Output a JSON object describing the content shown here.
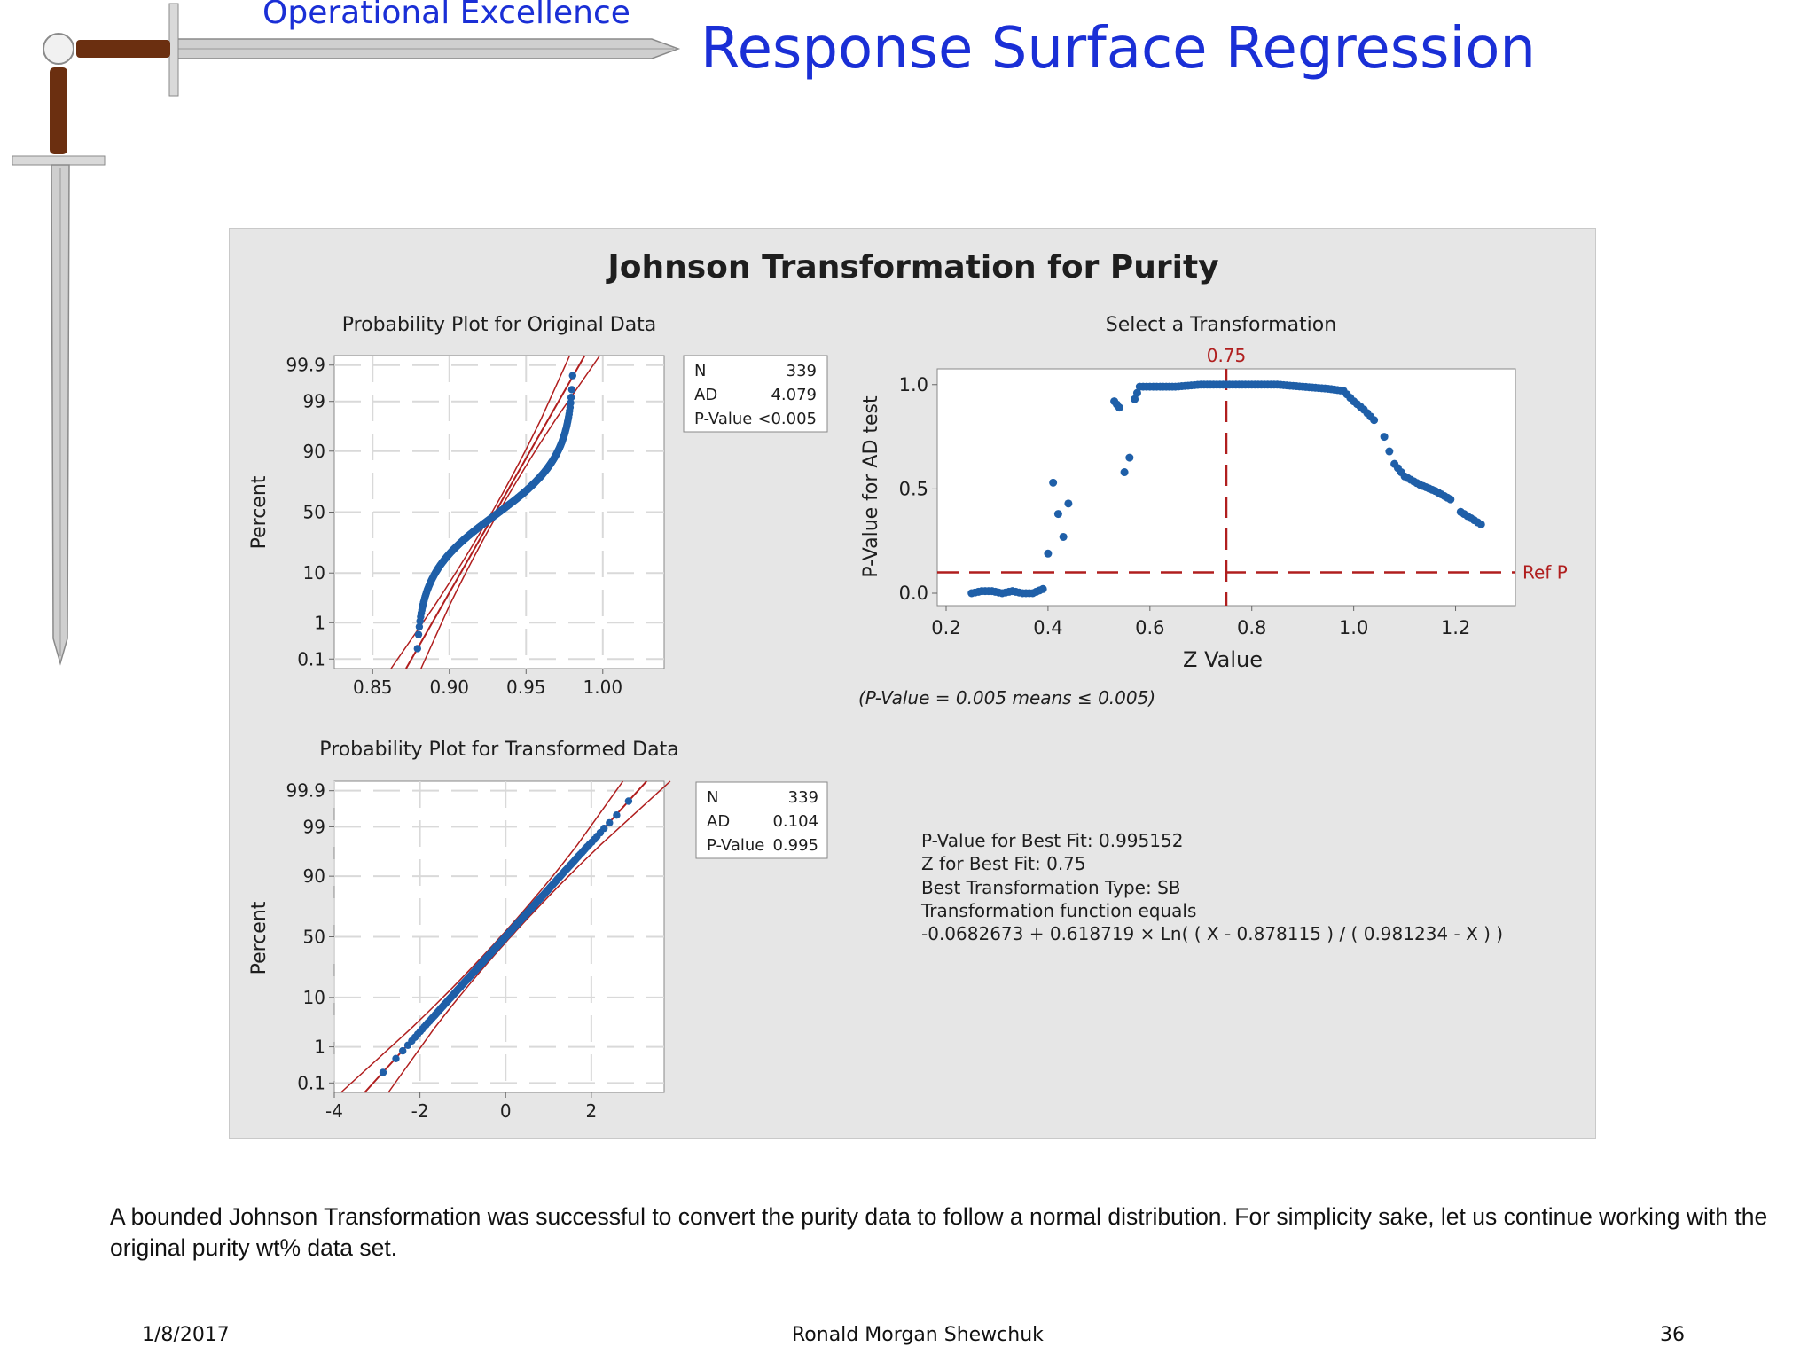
{
  "header": {
    "brand": "Operational Excellence",
    "title": "Response Surface Regression"
  },
  "figure": {
    "title": "Johnson Transformation for Purity"
  },
  "chart_data": [
    {
      "type": "scatter",
      "title": "Probability Plot for Original Data",
      "xlabel": "",
      "ylabel": "Percent",
      "xlim": [
        0.825,
        1.04
      ],
      "x_ticks": [
        "0.85",
        "0.90",
        "0.95",
        "1.00"
      ],
      "y_ticks": [
        "0.1",
        "1",
        "10",
        "50",
        "90",
        "99",
        "99.9"
      ],
      "y_scale": "normal-probability",
      "grid": true,
      "fit_line": {
        "mean": 0.93,
        "sd": 0.0177,
        "ci_band": true
      },
      "approx_points_sample": [
        [
          0.879,
          0.2
        ],
        [
          0.88,
          1
        ],
        [
          0.884,
          5
        ],
        [
          0.89,
          10
        ],
        [
          0.9,
          20
        ],
        [
          0.915,
          35
        ],
        [
          0.93,
          50
        ],
        [
          0.945,
          65
        ],
        [
          0.96,
          80
        ],
        [
          0.97,
          90
        ],
        [
          0.978,
          97
        ],
        [
          0.98,
          99.5
        ]
      ],
      "stats": {
        "N": "339",
        "AD": "4.079",
        "P-Value": "<0.005"
      }
    },
    {
      "type": "scatter",
      "title": "Select a Transformation",
      "xlabel": "Z Value",
      "ylabel": "P-Value for AD test",
      "xlim": [
        0.2,
        1.3
      ],
      "ylim": [
        0.0,
        1.05
      ],
      "x_ticks": [
        "0.2",
        "0.4",
        "0.6",
        "0.8",
        "1.0",
        "1.2"
      ],
      "y_ticks": [
        "0.0",
        "0.5",
        "1.0"
      ],
      "points": [
        [
          0.25,
          0.0
        ],
        [
          0.27,
          0.01
        ],
        [
          0.29,
          0.01
        ],
        [
          0.31,
          0.0
        ],
        [
          0.33,
          0.01
        ],
        [
          0.35,
          0.0
        ],
        [
          0.37,
          0.0
        ],
        [
          0.39,
          0.02
        ],
        [
          0.4,
          0.19
        ],
        [
          0.41,
          0.53
        ],
        [
          0.42,
          0.38
        ],
        [
          0.43,
          0.27
        ],
        [
          0.44,
          0.43
        ],
        [
          0.53,
          0.92
        ],
        [
          0.54,
          0.89
        ],
        [
          0.55,
          0.58
        ],
        [
          0.56,
          0.65
        ],
        [
          0.57,
          0.93
        ],
        [
          0.58,
          0.99
        ],
        [
          0.6,
          0.99
        ],
        [
          0.62,
          0.99
        ],
        [
          0.65,
          0.99
        ],
        [
          0.7,
          1.0
        ],
        [
          0.75,
          1.0
        ],
        [
          0.8,
          1.0
        ],
        [
          0.85,
          1.0
        ],
        [
          0.9,
          0.99
        ],
        [
          0.95,
          0.98
        ],
        [
          0.98,
          0.97
        ],
        [
          1.0,
          0.92
        ],
        [
          1.02,
          0.88
        ],
        [
          1.04,
          0.83
        ],
        [
          1.06,
          0.75
        ],
        [
          1.07,
          0.68
        ],
        [
          1.08,
          0.62
        ],
        [
          1.1,
          0.56
        ],
        [
          1.13,
          0.52
        ],
        [
          1.16,
          0.49
        ],
        [
          1.19,
          0.45
        ],
        [
          1.21,
          0.39
        ],
        [
          1.23,
          0.36
        ],
        [
          1.25,
          0.33
        ]
      ],
      "ref_lines": {
        "x": 0.75,
        "x_label": "0.75",
        "y": 0.1,
        "y_label": "Ref P"
      },
      "note": "(P-Value = 0.005 means ≤ 0.005)"
    },
    {
      "type": "scatter",
      "title": "Probability Plot for Transformed Data",
      "xlabel": "",
      "ylabel": "Percent",
      "xlim": [
        -4,
        3.7
      ],
      "x_ticks": [
        "-4",
        "-2",
        "0",
        "2"
      ],
      "y_ticks": [
        "0.1",
        "1",
        "10",
        "50",
        "90",
        "99",
        "99.9"
      ],
      "y_scale": "normal-probability",
      "grid": true,
      "fit_line": {
        "mean": 0.0,
        "sd": 1.0,
        "ci_band": true
      },
      "stats": {
        "N": "339",
        "AD": "0.104",
        "P-Value": "0.995"
      }
    }
  ],
  "best_fit": {
    "lines": [
      "P-Value for Best Fit: 0.995152",
      "Z for Best Fit: 0.75",
      "Best Transformation Type: SB",
      "Transformation function equals",
      "-0.0682673  + 0.618719 × Ln( ( X - 0.878115 ) / ( 0.981234 - X ) )"
    ]
  },
  "body_text": "A bounded Johnson Transformation was successful to convert the purity data to follow a normal distribution.  For simplicity sake, let us continue working with the original purity wt% data set.",
  "footer": {
    "date": "1/8/2017",
    "author": "Ronald Morgan Shewchuk",
    "page": "36"
  },
  "colors": {
    "title_blue": "#1a2fd6",
    "point_blue": "#1f5fa8",
    "ref_red": "#b01e1e",
    "panel_gray": "#e6e6e6"
  }
}
